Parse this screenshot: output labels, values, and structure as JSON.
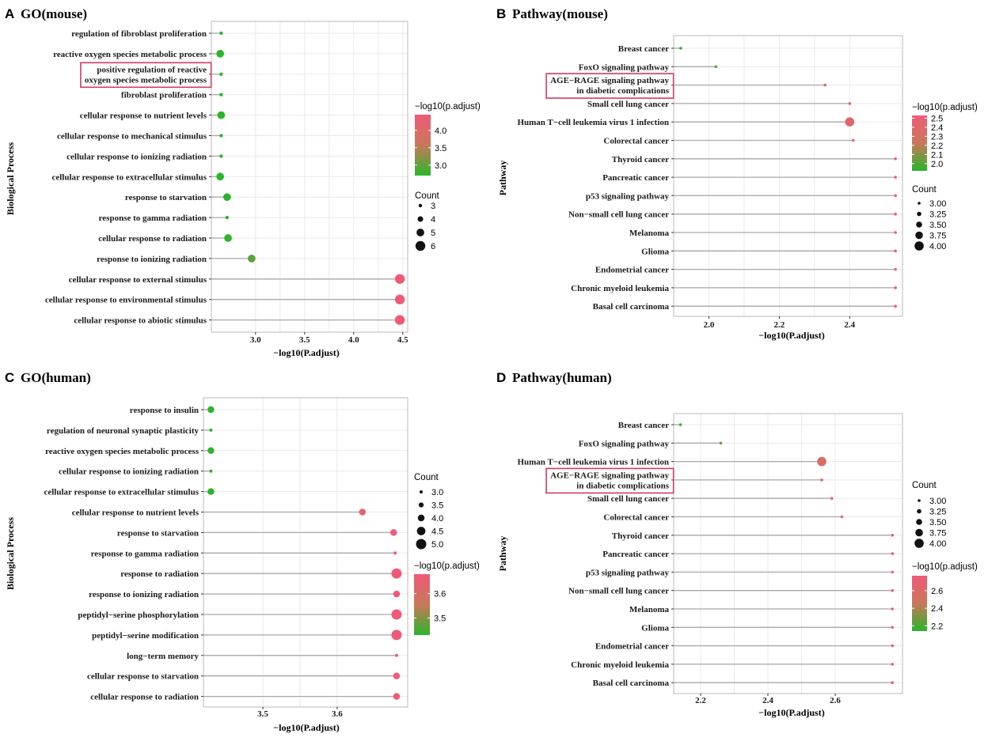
{
  "chart_data": [
    {
      "type": "scatter",
      "panel": "A",
      "title": "GO(mouse)",
      "xlabel": "−log10(P.adjust)",
      "ylabel": "Biological Process",
      "xlim": [
        2.55,
        4.55
      ],
      "xticks": [
        3.0,
        3.5,
        4.0,
        4.5
      ],
      "xtick_labels": [
        "3.0",
        "3.5",
        "4.0",
        "4.5"
      ],
      "color_range": [
        2.7,
        4.45
      ],
      "categories": [
        "regulation of fibroblast proliferation",
        "reactive oxygen species metabolic process",
        "positive regulation of reactive oxygen species metabolic process",
        "fibroblast proliferation",
        "cellular response to nutrient levels",
        "cellular response to mechanical stimulus",
        "cellular response to ionizing radiation",
        "cellular response to extracellular stimulus",
        "response to starvation",
        "response to gamma radiation",
        "cellular response to radiation",
        "response to ionizing radiation",
        "cellular response to external stimulus",
        "cellular response to environmental stimulus",
        "cellular response to abiotic stimulus"
      ],
      "labels": [
        "regulation of fibroblast proliferation",
        "reactive oxygen species metabolic process",
        "positive regulation of reactive\noxygen species metabolic process",
        "fibroblast proliferation",
        "cellular response to nutrient levels",
        "cellular response to mechanical stimulus",
        "cellular response to ionizing radiation",
        "cellular response to extracellular stimulus",
        "response to starvation",
        "response to gamma radiation",
        "cellular response to radiation",
        "response to ionizing radiation",
        "cellular response to external stimulus",
        "cellular response to environmental stimulus",
        "cellular response to abiotic stimulus"
      ],
      "highlighted": [
        2
      ],
      "values": [
        2.65,
        2.64,
        2.65,
        2.65,
        2.65,
        2.65,
        2.65,
        2.64,
        2.71,
        2.71,
        2.72,
        2.96,
        4.47,
        4.47,
        4.47
      ],
      "counts": [
        3,
        5,
        3,
        3,
        5,
        3,
        3,
        5,
        5,
        3,
        5,
        5,
        6,
        6,
        6
      ],
      "legend_color_title": "−log10(p.adjust)",
      "legend_color_ticks": [
        "4.0",
        "3.5",
        "3.0"
      ],
      "legend_color_tick_values": [
        4.0,
        3.5,
        3.0
      ],
      "legend_size_title": "Count",
      "legend_size_values": [
        "3",
        "4",
        "5",
        "6"
      ],
      "legend_order": "color-first"
    },
    {
      "type": "scatter",
      "panel": "B",
      "title": "Pathway(mouse)",
      "xlabel": "−log10(P.adjust)",
      "ylabel": "Pathway",
      "xlim": [
        1.9,
        2.55
      ],
      "xticks": [
        2.0,
        2.2,
        2.4
      ],
      "xtick_labels": [
        "2.0",
        "2.2",
        "2.4"
      ],
      "color_range": [
        1.92,
        2.53
      ],
      "categories": [
        "Breast cancer",
        "FoxO signaling pathway",
        "AGE−RAGE signaling pathway in diabetic complications",
        "Small cell lung cancer",
        "Human T−cell leukemia virus 1 infection",
        "Colorectal cancer",
        "Thyroid cancer",
        "Pancreatic cancer",
        "p53 signaling pathway",
        "Non−small cell lung cancer",
        "Melanoma",
        "Glioma",
        "Endometrial cancer",
        "Chronic myeloid leukemia",
        "Basal cell carcinoma"
      ],
      "labels": [
        "Breast cancer",
        "FoxO signaling pathway",
        "AGE−RAGE signaling pathway\nin diabetic complications",
        "Small cell lung cancer",
        "Human T−cell leukemia virus 1 infection",
        "Colorectal cancer",
        "Thyroid cancer",
        "Pancreatic cancer",
        "p53 signaling pathway",
        "Non−small cell lung cancer",
        "Melanoma",
        "Glioma",
        "Endometrial cancer",
        "Chronic myeloid leukemia",
        "Basal cell carcinoma"
      ],
      "highlighted": [
        2
      ],
      "values": [
        1.92,
        2.02,
        2.33,
        2.4,
        2.4,
        2.41,
        2.53,
        2.53,
        2.53,
        2.53,
        2.53,
        2.53,
        2.53,
        2.53,
        2.53
      ],
      "counts": [
        3,
        3,
        3,
        3,
        4,
        3,
        3,
        3,
        3,
        3,
        3,
        3,
        3,
        3,
        3
      ],
      "legend_color_title": "−log10(p.adjust)",
      "legend_color_ticks": [
        "2.5",
        "2.4",
        "2.3",
        "2.2",
        "2.1",
        "2.0"
      ],
      "legend_color_tick_values": [
        2.5,
        2.4,
        2.3,
        2.2,
        2.1,
        2.0
      ],
      "legend_size_title": "Count",
      "legend_size_values": [
        "3.00",
        "3.25",
        "3.50",
        "3.75",
        "4.00"
      ],
      "legend_order": "color-first"
    },
    {
      "type": "scatter",
      "panel": "C",
      "title": "GO(human)",
      "xlabel": "−log10(P.adjust)",
      "ylabel": "Biological Process",
      "xlim": [
        3.42,
        3.695
      ],
      "xticks": [
        3.5,
        3.6
      ],
      "xtick_labels": [
        "3.5",
        "3.6"
      ],
      "color_range": [
        3.43,
        3.68
      ],
      "categories": [
        "response to insulin",
        "regulation of neuronal synaptic plasticity",
        "reactive oxygen species metabolic process",
        "cellular response to ionizing radiation",
        "cellular response to extracellular stimulus",
        "cellular response to nutrient levels",
        "response to starvation",
        "response to gamma radiation",
        "response to radiation",
        "response to ionizing radiation",
        "peptidyl−serine phosphorylation",
        "peptidyl−serine modification",
        "long−term memory",
        "cellular response to starvation",
        "cellular response to radiation"
      ],
      "labels": [
        "response to insulin",
        "regulation of neuronal synaptic plasticity",
        "reactive oxygen species metabolic process",
        "cellular response to ionizing radiation",
        "cellular response to extracellular stimulus",
        "cellular response to nutrient levels",
        "response to starvation",
        "response to gamma radiation",
        "response to radiation",
        "response to ionizing radiation",
        "peptidyl−serine phosphorylation",
        "peptidyl−serine modification",
        "long−term memory",
        "cellular response to starvation",
        "cellular response to radiation"
      ],
      "highlighted": [],
      "values": [
        3.43,
        3.43,
        3.43,
        3.43,
        3.43,
        3.634,
        3.676,
        3.678,
        3.68,
        3.68,
        3.68,
        3.68,
        3.68,
        3.68,
        3.68
      ],
      "counts": [
        4,
        3,
        4,
        3,
        4,
        4,
        4,
        3,
        5,
        4,
        5,
        5,
        3,
        4,
        4
      ],
      "legend_color_title": "−log10(p.adjust)",
      "legend_color_ticks": [
        "3.6",
        "3.5"
      ],
      "legend_color_tick_values": [
        3.6,
        3.5
      ],
      "legend_size_title": "Count",
      "legend_size_values": [
        "3.0",
        "3.5",
        "4.0",
        "4.5",
        "5.0"
      ],
      "legend_order": "size-first"
    },
    {
      "type": "scatter",
      "panel": "D",
      "title": "Pathway(human)",
      "xlabel": "−log10(P.adjust)",
      "ylabel": "Pathway",
      "xlim": [
        2.12,
        2.8
      ],
      "xticks": [
        2.2,
        2.4,
        2.6
      ],
      "xtick_labels": [
        "2.2",
        "2.4",
        "2.6"
      ],
      "color_range": [
        2.14,
        2.77
      ],
      "categories": [
        "Breast cancer",
        "FoxO signaling pathway",
        "Human T−cell leukemia virus 1 infection",
        "AGE−RAGE signaling pathway in diabetic complications",
        "Small cell lung cancer",
        "Colorectal cancer",
        "Thyroid cancer",
        "Pancreatic cancer",
        "p53 signaling pathway",
        "Non−small cell lung cancer",
        "Melanoma",
        "Glioma",
        "Endometrial cancer",
        "Chronic myeloid leukemia",
        "Basal cell carcinoma"
      ],
      "labels": [
        "Breast cancer",
        "FoxO signaling pathway",
        "Human T−cell leukemia virus 1 infection",
        "AGE−RAGE signaling pathway\nin diabetic complications",
        "Small cell lung cancer",
        "Colorectal cancer",
        "Thyroid cancer",
        "Pancreatic cancer",
        "p53 signaling pathway",
        "Non−small cell lung cancer",
        "Melanoma",
        "Glioma",
        "Endometrial cancer",
        "Chronic myeloid leukemia",
        "Basal cell carcinoma"
      ],
      "highlighted": [
        3
      ],
      "values": [
        2.14,
        2.26,
        2.56,
        2.56,
        2.59,
        2.62,
        2.77,
        2.77,
        2.77,
        2.77,
        2.77,
        2.77,
        2.77,
        2.77,
        2.77
      ],
      "counts": [
        3,
        3,
        4,
        3,
        3,
        3,
        3,
        3,
        3,
        3,
        3,
        3,
        3,
        3,
        3
      ],
      "legend_color_title": "−log10(p.adjust)",
      "legend_color_ticks": [
        "2.6",
        "2.4",
        "2.2"
      ],
      "legend_color_tick_values": [
        2.6,
        2.4,
        2.2
      ],
      "legend_size_title": "Count",
      "legend_size_values": [
        "3.00",
        "3.25",
        "3.50",
        "3.75",
        "4.00"
      ],
      "legend_order": "size-first"
    }
  ],
  "colors": {
    "low": "#2bb52b",
    "high": "#ef5a78",
    "highlight_box": "#d33a63",
    "stem": "#a8a8a8",
    "frame": "#b8b8b8",
    "grid": "#e9e9e9"
  },
  "icons": [
    "color-gradient-legend",
    "dot-size-legend"
  ]
}
